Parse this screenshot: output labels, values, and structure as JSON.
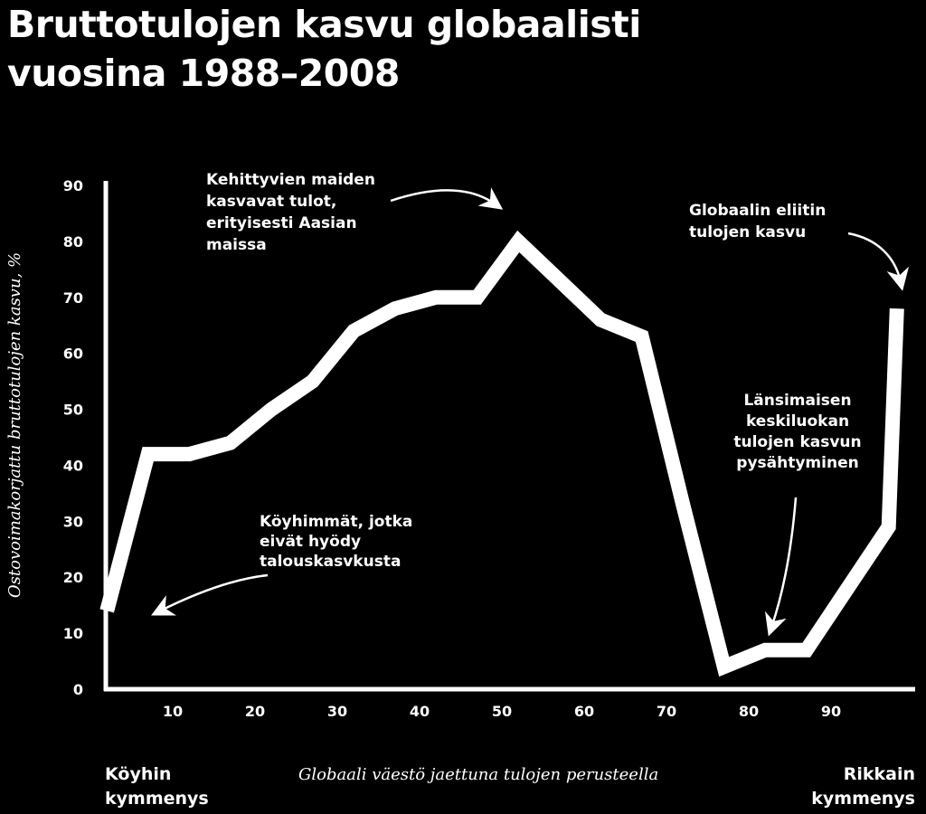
{
  "title_lines": [
    "Bruttotulojen kasvu globaalisti",
    "vuosina 1988–2008"
  ],
  "corner_left": [
    "Köyhin",
    "kymmenys"
  ],
  "corner_right": [
    "Rikkain",
    "kymmenys"
  ],
  "chart_data": {
    "type": "line",
    "title": "Bruttotulojen kasvu globaalisti vuosina 1988–2008",
    "xlabel": "Globaali väestö jaettuna tulojen perusteella",
    "ylabel": "Ostovoimakorjattu bruttotulojen kasvu, %",
    "xlim": [
      0,
      100
    ],
    "ylim": [
      0,
      90
    ],
    "x_ticks": [
      10,
      20,
      30,
      40,
      50,
      60,
      70,
      80,
      90
    ],
    "y_ticks": [
      0,
      10,
      20,
      30,
      40,
      50,
      60,
      70,
      80,
      90
    ],
    "series": [
      {
        "x": [
          2,
          7,
          12,
          17,
          22,
          27,
          32,
          37,
          42,
          47,
          52,
          57,
          62,
          67,
          72,
          77,
          82,
          87,
          92,
          97,
          98
        ],
        "y": [
          14,
          42,
          42,
          44,
          50,
          55,
          64,
          68,
          70,
          70,
          80,
          73,
          66,
          63,
          33,
          4,
          7,
          7,
          18,
          29,
          68
        ]
      }
    ],
    "annotations": [
      {
        "lines": [
          "Kehittyvien maiden",
          "kasvavat tulot,",
          "erityisesti Aasian",
          "maissa"
        ]
      },
      {
        "lines": [
          "Globaalin eliitin",
          "tulojen kasvu"
        ]
      },
      {
        "lines": [
          "Länsimaisen",
          "keskiluokan",
          "tulojen kasvun",
          "pysähtyminen"
        ]
      },
      {
        "lines": [
          "Köyhimmät, jotka",
          "eivät hyödy",
          "talouskasvkusta"
        ]
      }
    ]
  }
}
